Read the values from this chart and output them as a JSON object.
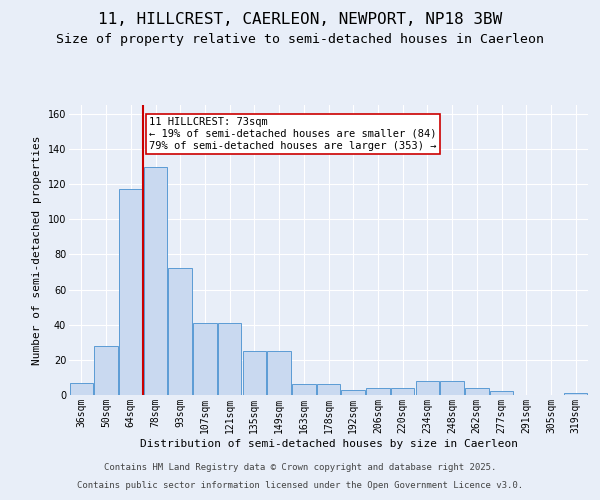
{
  "title": "11, HILLCREST, CAERLEON, NEWPORT, NP18 3BW",
  "subtitle": "Size of property relative to semi-detached houses in Caerleon",
  "xlabel": "Distribution of semi-detached houses by size in Caerleon",
  "ylabel": "Number of semi-detached properties",
  "categories": [
    "36sqm",
    "50sqm",
    "64sqm",
    "78sqm",
    "93sqm",
    "107sqm",
    "121sqm",
    "135sqm",
    "149sqm",
    "163sqm",
    "178sqm",
    "192sqm",
    "206sqm",
    "220sqm",
    "234sqm",
    "248sqm",
    "262sqm",
    "277sqm",
    "291sqm",
    "305sqm",
    "319sqm"
  ],
  "values": [
    7,
    28,
    117,
    130,
    72,
    41,
    41,
    25,
    25,
    6,
    6,
    3,
    4,
    4,
    8,
    8,
    4,
    2,
    0,
    0,
    1
  ],
  "bar_color": "#c9d9f0",
  "bar_edge_color": "#5b9bd5",
  "vline_color": "#cc0000",
  "annotation_title": "11 HILLCREST: 73sqm",
  "annotation_smaller": "← 19% of semi-detached houses are smaller (84)",
  "annotation_larger": "79% of semi-detached houses are larger (353) →",
  "annotation_box_facecolor": "#ffffff",
  "annotation_box_edgecolor": "#cc0000",
  "background_color": "#e8eef8",
  "plot_bg_color": "#e8eef8",
  "ylim": [
    0,
    165
  ],
  "yticks": [
    0,
    20,
    40,
    60,
    80,
    100,
    120,
    140,
    160
  ],
  "footer_line1": "Contains HM Land Registry data © Crown copyright and database right 2025.",
  "footer_line2": "Contains public sector information licensed under the Open Government Licence v3.0.",
  "title_fontsize": 11.5,
  "subtitle_fontsize": 9.5,
  "axis_label_fontsize": 8,
  "tick_fontsize": 7,
  "annotation_fontsize": 7.5,
  "footer_fontsize": 6.5
}
